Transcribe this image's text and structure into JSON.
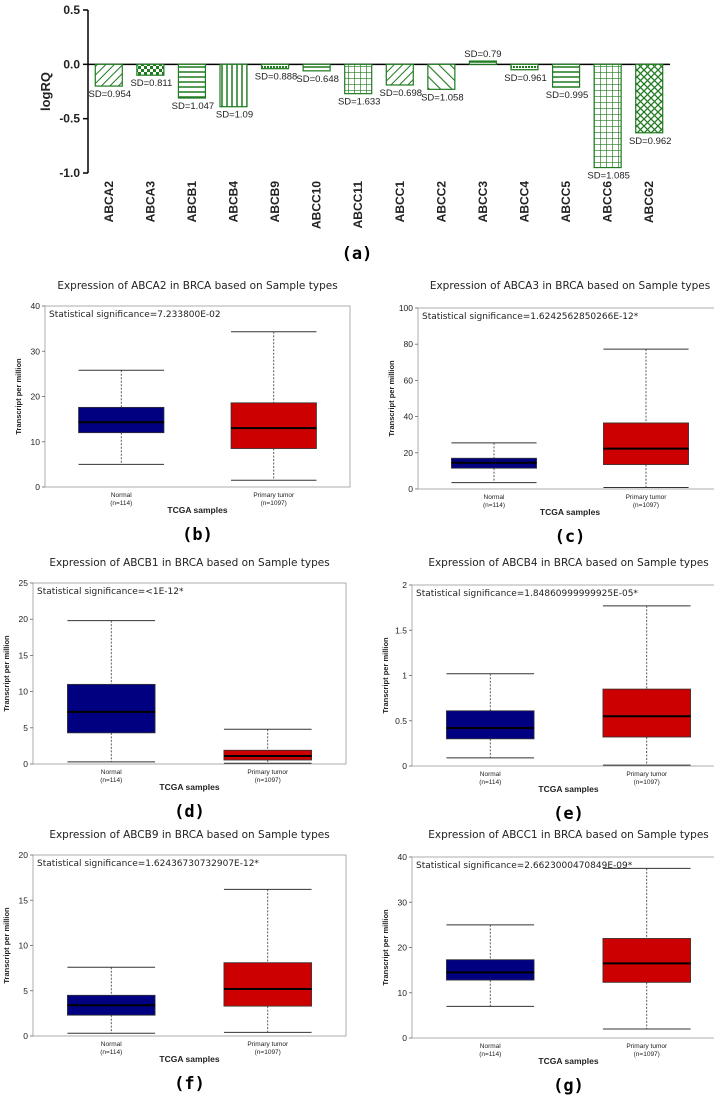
{
  "colors": {
    "bar_stroke": "#1e7b1e",
    "normal_box": "#000080",
    "tumor_box": "#cc0000",
    "axis": "#000000"
  },
  "chart_data": [
    {
      "panel": "(a)",
      "type": "bar",
      "ylabel": "logRQ",
      "ylim": [
        -1.0,
        0.5
      ],
      "yticks": [
        "0.5",
        "0.0",
        "-0.5",
        "-1.0"
      ],
      "grid": false,
      "categories": [
        "ABCA2",
        "ABCA3",
        "ABCB1",
        "ABCB4",
        "ABCB9",
        "ABCC10",
        "ABCC11",
        "ABCC1",
        "ABCC2",
        "ABCC3",
        "ABCC4",
        "ABCC5",
        "ABCC6",
        "ABCG2"
      ],
      "values": [
        -0.2,
        -0.1,
        -0.31,
        -0.39,
        -0.04,
        -0.06,
        -0.27,
        -0.19,
        -0.23,
        0.03,
        -0.05,
        -0.21,
        -0.95,
        -0.63
      ],
      "sd_labels": [
        "SD=0.954",
        "SD=0.811",
        "SD=1.047",
        "SD=1.09",
        "SD=0.888",
        "SD=0.648",
        "SD=1.633",
        "SD=0.698",
        "SD=1.058",
        "SD=0.79",
        "SD=0.961",
        "SD=0.995",
        "SD=1.085",
        "SD=0.962"
      ],
      "patterns": [
        "diag",
        "check",
        "hlines",
        "vlines",
        "dense",
        "hlines",
        "grid",
        "diag",
        "diag2",
        "hlines",
        "dense",
        "hlines",
        "grid",
        "cross"
      ]
    },
    {
      "panel": "(b)",
      "type": "box",
      "title": "Expression of ABCA2 in BRCA based on Sample types",
      "significance": "Statistical significance=7.233800E-02",
      "ylabel": "Transcript per million",
      "xlabel": "TCGA samples",
      "ylim": [
        0,
        40
      ],
      "yticks": [
        "0",
        "10",
        "20",
        "30",
        "40"
      ],
      "groups": [
        {
          "name": "Normal",
          "n": "(n=114)",
          "min": 5,
          "q1": 12,
          "median": 14.3,
          "q3": 17.6,
          "max": 25.8
        },
        {
          "name": "Primary tumor",
          "n": "(n=1097)",
          "min": 1.5,
          "q1": 8.5,
          "median": 13,
          "q3": 18.6,
          "max": 34.3
        }
      ]
    },
    {
      "panel": "(c)",
      "type": "box",
      "title": "Expression of ABCA3 in BRCA based on Sample types",
      "significance": "Statistical significance=1.6242562850266E-12*",
      "ylabel": "Transcript per million",
      "xlabel": "TCGA samples",
      "ylim": [
        0,
        100
      ],
      "yticks": [
        "0",
        "20",
        "40",
        "60",
        "80",
        "100"
      ],
      "groups": [
        {
          "name": "Normal",
          "n": "(n=114)",
          "min": 3.5,
          "q1": 11.5,
          "median": 14.5,
          "q3": 17,
          "max": 25.5
        },
        {
          "name": "Primary tumor",
          "n": "(n=1097)",
          "min": 0.8,
          "q1": 13.5,
          "median": 22.3,
          "q3": 36.5,
          "max": 77.3
        }
      ]
    },
    {
      "panel": "(d)",
      "type": "box",
      "title": "Expression of ABCB1 in BRCA based on Sample types",
      "significance": "Statistical significance=<1E-12*",
      "ylabel": "Transcript per million",
      "xlabel": "TCGA samples",
      "ylim": [
        0,
        25
      ],
      "yticks": [
        "0",
        "5",
        "10",
        "15",
        "20",
        "25"
      ],
      "groups": [
        {
          "name": "Normal",
          "n": "(n=114)",
          "min": 0.3,
          "q1": 4.3,
          "median": 7.2,
          "q3": 11,
          "max": 19.8
        },
        {
          "name": "Primary tumor",
          "n": "(n=1097)",
          "min": 0.1,
          "q1": 0.55,
          "median": 1.1,
          "q3": 1.9,
          "max": 4.8
        }
      ]
    },
    {
      "panel": "(e)",
      "type": "box",
      "title": "Expression of ABCB4 in BRCA based on Sample types",
      "significance": "Statistical significance=1.84860999999925E-05*",
      "ylabel": "Transcript per million",
      "xlabel": "TCGA samples",
      "ylim": [
        0,
        2
      ],
      "yticks": [
        "0",
        "0.5",
        "1",
        "1.5",
        "2"
      ],
      "groups": [
        {
          "name": "Normal",
          "n": "(n=114)",
          "min": 0.09,
          "q1": 0.3,
          "median": 0.42,
          "q3": 0.61,
          "max": 1.02
        },
        {
          "name": "Primary tumor",
          "n": "(n=1097)",
          "min": 0.01,
          "q1": 0.32,
          "median": 0.55,
          "q3": 0.85,
          "max": 1.77
        }
      ]
    },
    {
      "panel": "(f)",
      "type": "box",
      "title": "Expression of ABCB9 in BRCA based on Sample types",
      "significance": "Statistical significance=1.62436730732907E-12*",
      "ylabel": "Transcript per million",
      "xlabel": "TCGA samples",
      "ylim": [
        0,
        20
      ],
      "yticks": [
        "0",
        "5",
        "10",
        "15",
        "20"
      ],
      "groups": [
        {
          "name": "Normal",
          "n": "(n=114)",
          "min": 0.3,
          "q1": 2.3,
          "median": 3.4,
          "q3": 4.5,
          "max": 7.6
        },
        {
          "name": "Primary tumor",
          "n": "(n=1097)",
          "min": 0.4,
          "q1": 3.3,
          "median": 5.2,
          "q3": 8.1,
          "max": 16.2
        }
      ]
    },
    {
      "panel": "(g)",
      "type": "box",
      "title": "Expression of ABCC1 in BRCA based on Sample types",
      "significance": "Statistical significance=2.6623000470849E-09*",
      "ylabel": "Transcript per million",
      "xlabel": "TCGA samples",
      "ylim": [
        0,
        40
      ],
      "yticks": [
        "0",
        "10",
        "20",
        "30",
        "40"
      ],
      "groups": [
        {
          "name": "Normal",
          "n": "(n=114)",
          "min": 7,
          "q1": 12.8,
          "median": 14.5,
          "q3": 17.3,
          "max": 25
        },
        {
          "name": "Primary tumor",
          "n": "(n=1097)",
          "min": 2,
          "q1": 12.3,
          "median": 16.5,
          "q3": 22,
          "max": 37.5
        }
      ]
    }
  ]
}
